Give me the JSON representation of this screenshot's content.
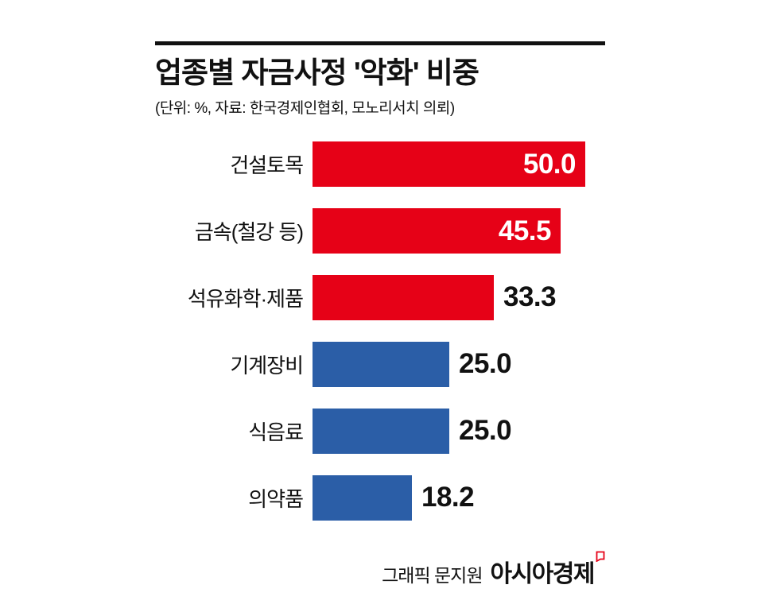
{
  "header": {
    "title": "업종별 자금사정 '악화' 비중",
    "subtitle": "(단위: %, 자료: 한국경제인협회, 모노리서치 의뢰)"
  },
  "footer": {
    "credit": "그래픽 문지원",
    "brand": "아시아경제"
  },
  "colors": {
    "red": "#e60117",
    "blue": "#2b5ea7",
    "text": "#111111"
  },
  "chart_data": {
    "type": "bar",
    "orientation": "horizontal",
    "title": "업종별 자금사정 '악화' 비중",
    "unit": "%",
    "source": "한국경제인협회, 모노리서치",
    "categories": [
      "건설토목",
      "금속(철강 등)",
      "석유화학·제품",
      "기계장비",
      "식음료",
      "의약품"
    ],
    "values": [
      50.0,
      45.5,
      33.3,
      25.0,
      25.0,
      18.2
    ],
    "bar_colors": [
      "red",
      "red",
      "red",
      "blue",
      "blue",
      "blue"
    ],
    "value_label_inside": [
      true,
      true,
      false,
      false,
      false,
      false
    ],
    "xlim": [
      0,
      50
    ],
    "grid": false,
    "legend": false
  }
}
